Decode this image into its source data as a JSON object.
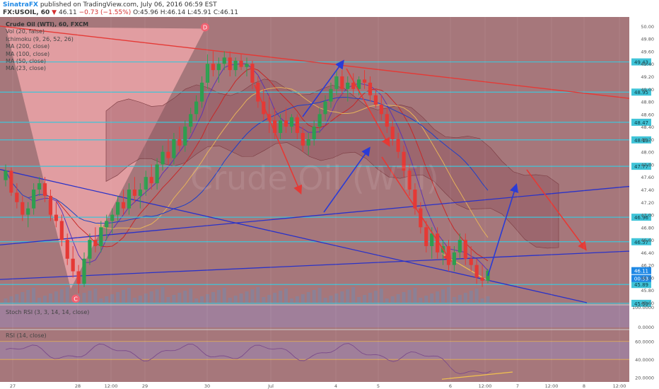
{
  "header": {
    "publisher": "SinatraFX",
    "published_text": "published on TradingView.com, July 06, 2016 06:59 EST",
    "symbol": "FX:USOIL, 60",
    "last": "46.11",
    "change": "−0.73 (−1.55%)",
    "o": "O:45.96",
    "h": "H:46.14",
    "l": "L:45.91",
    "c": "C:46.11"
  },
  "studies": {
    "title": "Crude Oil (WTI), 60, FXCM",
    "vol": "Vol (20, false)",
    "ichimoku": "Ichimoku (9, 26, 52, 26)",
    "ma200": "MA (200, close)",
    "ma100": "MA (100, close)",
    "ma50": "MA (50, close)",
    "ma23": "MA (23, close)",
    "stoch": "Stoch RSI (3, 3, 14, 14, close)",
    "rsi": "RSI (14, close)"
  },
  "watermark": "Crude Oil (WTI)",
  "chart_data": {
    "type": "candlestick",
    "price_axis": {
      "range": [
        45.6,
        50.1
      ],
      "ticks": [
        "50.00",
        "49.80",
        "49.60",
        "49.40",
        "49.20",
        "49.00",
        "48.80",
        "48.60",
        "48.40",
        "48.20",
        "48.00",
        "47.80",
        "47.60",
        "47.40",
        "47.20",
        "47.00",
        "46.80",
        "46.60",
        "46.40",
        "46.20",
        "46.00",
        "45.80",
        "45.60"
      ]
    },
    "time_axis": {
      "ticks": [
        "27",
        "28",
        "12:00",
        "29",
        "30",
        "Jul",
        "4",
        "5",
        "6",
        "12:00",
        "7",
        "12:00",
        "8",
        "12:00"
      ]
    },
    "candles": [
      [
        47.55,
        47.8,
        47.45,
        47.7
      ],
      [
        47.7,
        47.75,
        47.3,
        47.35
      ],
      [
        47.35,
        47.5,
        47.1,
        47.2
      ],
      [
        47.2,
        47.3,
        46.9,
        47.0
      ],
      [
        47.0,
        47.2,
        46.8,
        47.1
      ],
      [
        47.1,
        47.5,
        47.0,
        47.4
      ],
      [
        47.4,
        47.6,
        47.3,
        47.5
      ],
      [
        47.5,
        47.6,
        47.2,
        47.3
      ],
      [
        47.3,
        47.4,
        46.9,
        47.0
      ],
      [
        47.0,
        47.2,
        46.8,
        46.9
      ],
      [
        46.9,
        47.0,
        46.5,
        46.6
      ],
      [
        46.6,
        46.7,
        46.2,
        46.3
      ],
      [
        46.3,
        46.5,
        46.0,
        46.1
      ],
      [
        46.1,
        46.2,
        45.75,
        45.9
      ],
      [
        45.9,
        46.4,
        45.85,
        46.3
      ],
      [
        46.3,
        46.7,
        46.2,
        46.6
      ],
      [
        46.6,
        46.8,
        46.4,
        46.5
      ],
      [
        46.5,
        46.9,
        46.4,
        46.8
      ],
      [
        46.8,
        47.0,
        46.6,
        46.9
      ],
      [
        46.9,
        47.1,
        46.7,
        47.0
      ],
      [
        47.0,
        47.3,
        46.9,
        47.2
      ],
      [
        47.2,
        47.4,
        47.0,
        47.1
      ],
      [
        47.1,
        47.5,
        47.0,
        47.4
      ],
      [
        47.4,
        47.6,
        47.2,
        47.3
      ],
      [
        47.3,
        47.5,
        47.1,
        47.4
      ],
      [
        47.4,
        47.7,
        47.3,
        47.6
      ],
      [
        47.6,
        47.8,
        47.4,
        47.5
      ],
      [
        47.5,
        47.9,
        47.4,
        47.8
      ],
      [
        47.8,
        48.1,
        47.7,
        48.0
      ],
      [
        48.0,
        48.2,
        47.8,
        47.9
      ],
      [
        47.9,
        48.3,
        47.8,
        48.2
      ],
      [
        48.2,
        48.4,
        48.0,
        48.1
      ],
      [
        48.1,
        48.5,
        48.0,
        48.4
      ],
      [
        48.4,
        48.7,
        48.3,
        48.6
      ],
      [
        48.6,
        48.9,
        48.5,
        48.8
      ],
      [
        48.8,
        49.2,
        48.7,
        49.1
      ],
      [
        49.1,
        49.55,
        49.0,
        49.4
      ],
      [
        49.4,
        49.6,
        49.2,
        49.3
      ],
      [
        49.3,
        49.5,
        49.1,
        49.4
      ],
      [
        49.4,
        49.6,
        49.3,
        49.5
      ],
      [
        49.5,
        49.6,
        49.2,
        49.3
      ],
      [
        49.3,
        49.5,
        49.2,
        49.45
      ],
      [
        49.45,
        49.55,
        49.3,
        49.35
      ],
      [
        49.35,
        49.5,
        49.2,
        49.4
      ],
      [
        49.4,
        49.45,
        49.0,
        49.1
      ],
      [
        49.1,
        49.2,
        48.7,
        48.8
      ],
      [
        48.8,
        49.0,
        48.5,
        48.6
      ],
      [
        48.6,
        48.9,
        48.3,
        48.5
      ],
      [
        48.5,
        48.7,
        48.2,
        48.3
      ],
      [
        48.3,
        48.6,
        48.2,
        48.5
      ],
      [
        48.5,
        48.7,
        48.3,
        48.4
      ],
      [
        48.4,
        48.6,
        48.3,
        48.55
      ],
      [
        48.55,
        48.6,
        48.2,
        48.3
      ],
      [
        48.3,
        48.4,
        48.0,
        48.1
      ],
      [
        48.1,
        48.3,
        47.95,
        48.2
      ],
      [
        48.2,
        48.5,
        48.1,
        48.4
      ],
      [
        48.4,
        48.7,
        48.3,
        48.6
      ],
      [
        48.6,
        48.9,
        48.5,
        48.8
      ],
      [
        48.8,
        49.1,
        48.7,
        49.0
      ],
      [
        49.0,
        49.3,
        48.9,
        49.2
      ],
      [
        49.2,
        49.3,
        48.9,
        49.0
      ],
      [
        49.0,
        49.2,
        48.8,
        49.1
      ],
      [
        49.1,
        49.25,
        48.9,
        49.0
      ],
      [
        49.0,
        49.2,
        48.9,
        49.15
      ],
      [
        49.15,
        49.3,
        49.0,
        49.1
      ],
      [
        49.1,
        49.2,
        48.8,
        48.9
      ],
      [
        48.9,
        49.0,
        48.7,
        48.75
      ],
      [
        48.75,
        48.9,
        48.5,
        48.6
      ],
      [
        48.6,
        48.7,
        48.3,
        48.4
      ],
      [
        48.4,
        48.5,
        48.1,
        48.2
      ],
      [
        48.2,
        48.3,
        47.9,
        48.0
      ],
      [
        48.0,
        48.1,
        47.6,
        47.7
      ],
      [
        47.7,
        47.8,
        47.3,
        47.4
      ],
      [
        47.4,
        47.5,
        47.0,
        47.1
      ],
      [
        47.1,
        47.2,
        46.7,
        46.8
      ],
      [
        46.8,
        46.9,
        46.4,
        46.5
      ],
      [
        46.5,
        46.8,
        46.3,
        46.7
      ],
      [
        46.7,
        46.8,
        46.3,
        46.4
      ],
      [
        46.4,
        46.6,
        46.2,
        46.5
      ],
      [
        46.5,
        46.6,
        46.1,
        46.2
      ],
      [
        46.2,
        46.5,
        46.1,
        46.4
      ],
      [
        46.4,
        46.7,
        46.3,
        46.6
      ],
      [
        46.6,
        46.7,
        46.2,
        46.3
      ],
      [
        46.3,
        46.5,
        46.1,
        46.2
      ],
      [
        46.2,
        46.3,
        45.9,
        46.0
      ],
      [
        46.0,
        46.2,
        45.85,
        45.95
      ],
      [
        45.95,
        46.14,
        45.91,
        46.11
      ]
    ],
    "horizontal_levels": [
      {
        "price": 49.43,
        "label": "49.43"
      },
      {
        "price": 48.95,
        "label": "48.95"
      },
      {
        "price": 48.47,
        "label": "48.47"
      },
      {
        "price": 48.19,
        "label": "48.19"
      },
      {
        "price": 47.77,
        "label": "47.77"
      },
      {
        "price": 46.96,
        "label": "46.96"
      },
      {
        "price": 46.57,
        "label": "46.57"
      },
      {
        "price": 45.89,
        "label": "45.89"
      },
      {
        "price": 45.59,
        "label": "45.59"
      }
    ],
    "last_price": {
      "price": 46.11,
      "label": "46.11",
      "countdown": "00:53"
    },
    "pattern_points": {
      "C": "C",
      "D": "D"
    },
    "stoch_rsi_axis": [
      "100.0000",
      "0.0000"
    ],
    "rsi_axis": [
      "60.0000",
      "40.0000",
      "20.0000"
    ],
    "colors": {
      "background": "#a6777b",
      "candle_up": "#2e9e4f",
      "candle_down": "#e53935",
      "level_line": "#40c4d8",
      "arrow_up": "#2a3bd6",
      "arrow_down": "#e53935",
      "resistance": "#e53935",
      "support": "#2a32c8",
      "wedge": "#f4a9ad",
      "indicator_band": "#9b86b4"
    }
  }
}
